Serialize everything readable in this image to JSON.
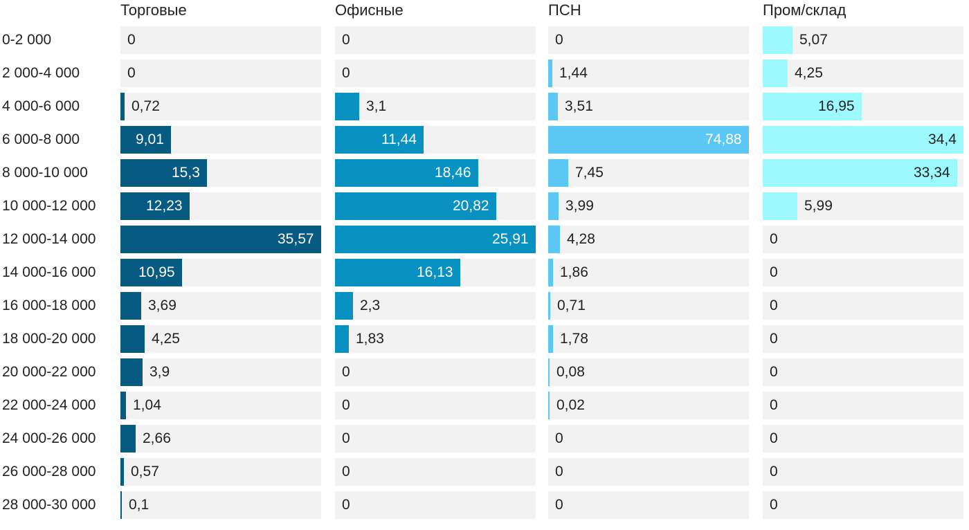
{
  "chart_data": {
    "type": "bar",
    "orientation": "horizontal",
    "layout": "small-multiples",
    "categories": [
      "0-2 000",
      "2 000-4 000",
      "4 000-6 000",
      "6 000-8 000",
      "8 000-10 000",
      "10 000-12 000",
      "12 000-14 000",
      "14 000-16 000",
      "16 000-18 000",
      "18 000-20 000",
      "20 000-22 000",
      "22 000-24 000",
      "24 000-26 000",
      "26 000-28 000",
      "28 000-30 000"
    ],
    "series": [
      {
        "name": "Торговые",
        "color": "#075a82",
        "max": 35.57,
        "values": [
          0,
          0,
          0.72,
          9.01,
          15.3,
          12.23,
          35.57,
          10.95,
          3.69,
          4.25,
          3.9,
          1.04,
          2.66,
          0.57,
          0.1
        ],
        "labels": [
          "0",
          "0",
          "0,72",
          "9,01",
          "15,3",
          "12,23",
          "35,57",
          "10,95",
          "3,69",
          "4,25",
          "3,9",
          "1,04",
          "2,66",
          "0,57",
          "0,1"
        ]
      },
      {
        "name": "Офисные",
        "color": "#0891c1",
        "max": 25.91,
        "values": [
          0,
          0,
          3.1,
          11.44,
          18.46,
          20.82,
          25.91,
          16.13,
          2.3,
          1.83,
          0,
          0,
          0,
          0,
          0
        ],
        "labels": [
          "0",
          "0",
          "3,1",
          "11,44",
          "18,46",
          "20,82",
          "25,91",
          "16,13",
          "2,3",
          "1,83",
          "0",
          "0",
          "0",
          "0",
          "0"
        ]
      },
      {
        "name": "ПСН",
        "color": "#5cc6f5",
        "max": 74.88,
        "values": [
          0,
          1.44,
          3.51,
          74.88,
          7.45,
          3.99,
          4.28,
          1.86,
          0.71,
          1.78,
          0.08,
          0.02,
          0,
          0,
          0
        ],
        "labels": [
          "0",
          "1,44",
          "3,51",
          "74,88",
          "7,45",
          "3,99",
          "4,28",
          "1,86",
          "0,71",
          "1,78",
          "0,08",
          "0,02",
          "0",
          "0",
          "0"
        ]
      },
      {
        "name": "Пром/склад",
        "color": "#9cfafe",
        "max": 34.4,
        "values": [
          5.07,
          4.25,
          16.95,
          34.4,
          33.34,
          5.99,
          0,
          0,
          0,
          0,
          0,
          0,
          0,
          0,
          0
        ],
        "labels": [
          "5,07",
          "4,25",
          "16,95",
          "34,4",
          "33,34",
          "5,99",
          "0",
          "0",
          "0",
          "0",
          "0",
          "0",
          "0",
          "0",
          "0"
        ]
      }
    ],
    "value_label_colors": {
      "inside": "#ffffff",
      "inside_light": "#222222",
      "outside": "#222222"
    }
  }
}
